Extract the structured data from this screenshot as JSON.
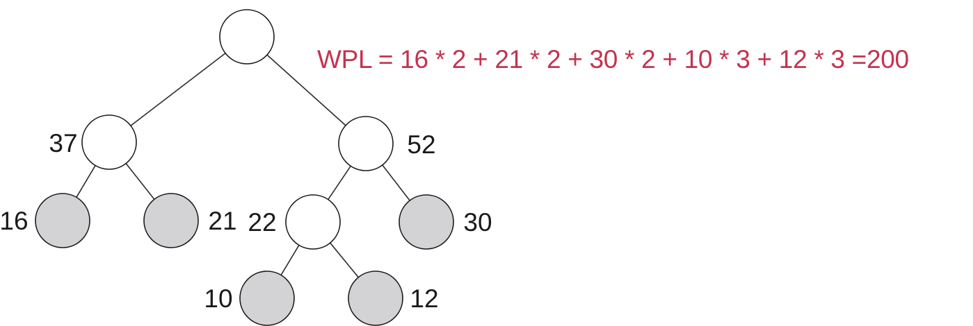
{
  "colors": {
    "internal_fill": "#ffffff",
    "leaf_fill": "#d3d2d4",
    "stroke": "#1a1a1a",
    "formula": "#c4334f"
  },
  "formula": {
    "text": "WPL = 16 * 2 + 21 * 2 + 30 * 2 + 10 * 3 + 12 * 3 =200"
  },
  "tree": {
    "nodes": [
      {
        "id": "root",
        "label": "",
        "leaf": false
      },
      {
        "id": "n37",
        "label": "37",
        "leaf": false
      },
      {
        "id": "n52",
        "label": "52",
        "leaf": false
      },
      {
        "id": "n16",
        "label": "16",
        "leaf": true
      },
      {
        "id": "n21",
        "label": "21",
        "leaf": true
      },
      {
        "id": "n22",
        "label": "22",
        "leaf": false
      },
      {
        "id": "n30",
        "label": "30",
        "leaf": true
      },
      {
        "id": "n10",
        "label": "10",
        "leaf": true
      },
      {
        "id": "n12",
        "label": "12",
        "leaf": true
      }
    ],
    "edges": [
      [
        "root",
        "n37"
      ],
      [
        "root",
        "n52"
      ],
      [
        "n37",
        "n16"
      ],
      [
        "n37",
        "n21"
      ],
      [
        "n52",
        "n22"
      ],
      [
        "n52",
        "n30"
      ],
      [
        "n22",
        "n10"
      ],
      [
        "n22",
        "n12"
      ]
    ]
  }
}
